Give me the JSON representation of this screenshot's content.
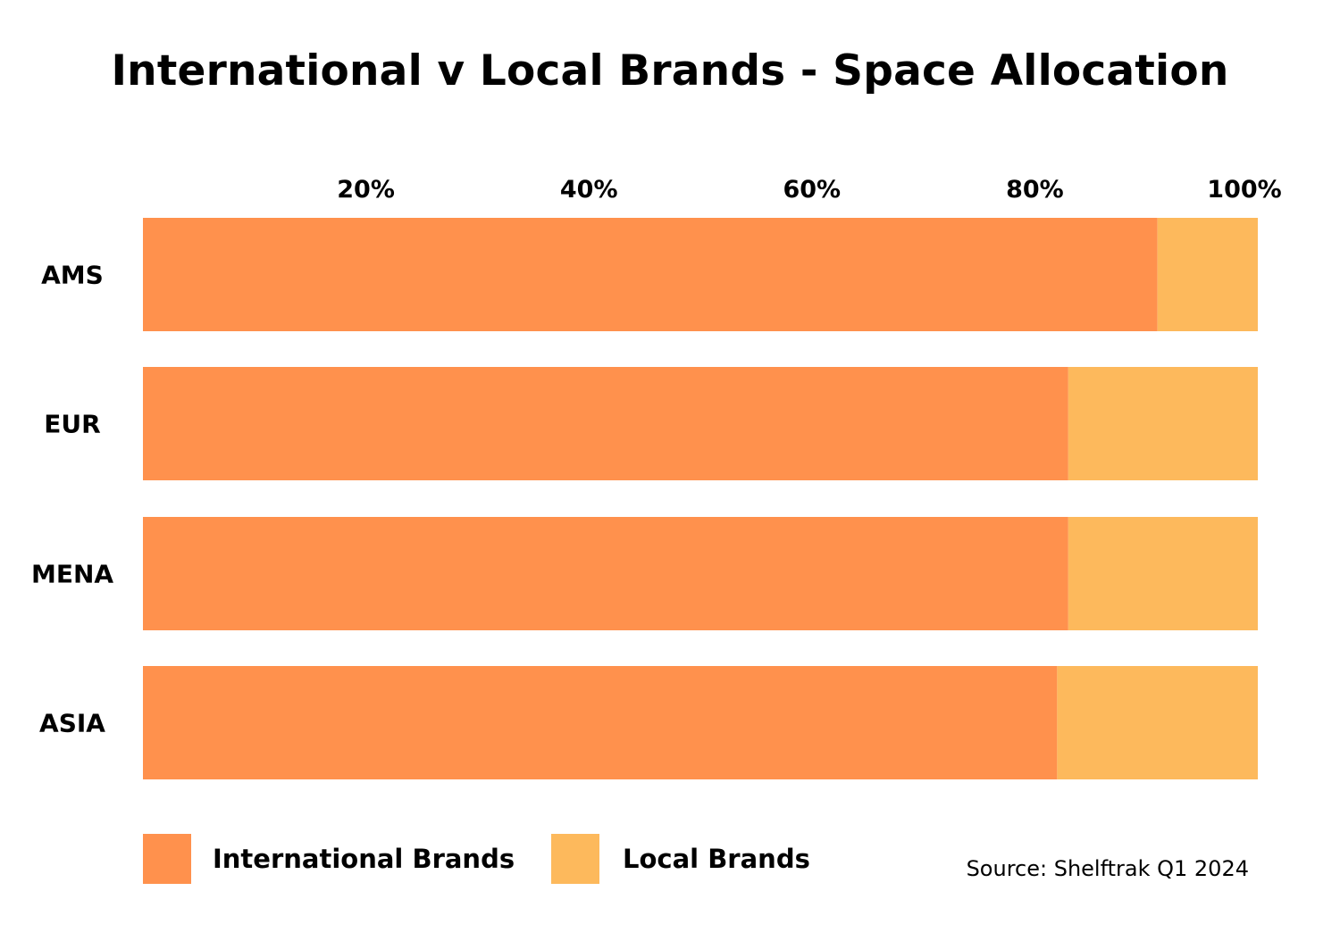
{
  "chart_data": {
    "type": "bar",
    "orientation": "horizontal",
    "stacked": true,
    "title": "International v Local Brands - Space Allocation",
    "categories": [
      "AMS",
      "EUR",
      "MENA",
      "ASIA"
    ],
    "series": [
      {
        "name": "International Brands",
        "color": "#FF914D",
        "values": [
          91,
          83,
          83,
          82
        ]
      },
      {
        "name": "Local Brands",
        "color": "#FDB95C",
        "values": [
          9,
          17,
          17,
          18
        ]
      }
    ],
    "x_ticks": [
      {
        "value": 20,
        "label": "20%"
      },
      {
        "value": 40,
        "label": "40%"
      },
      {
        "value": 60,
        "label": "60%"
      },
      {
        "value": 80,
        "label": "80%"
      },
      {
        "value": 100,
        "label": "100%"
      }
    ],
    "xlim": [
      0,
      100
    ],
    "x_axis_position": "top",
    "grid": false,
    "legend_position": "bottom-left",
    "source": "Source: Shelftrak Q1 2024"
  }
}
